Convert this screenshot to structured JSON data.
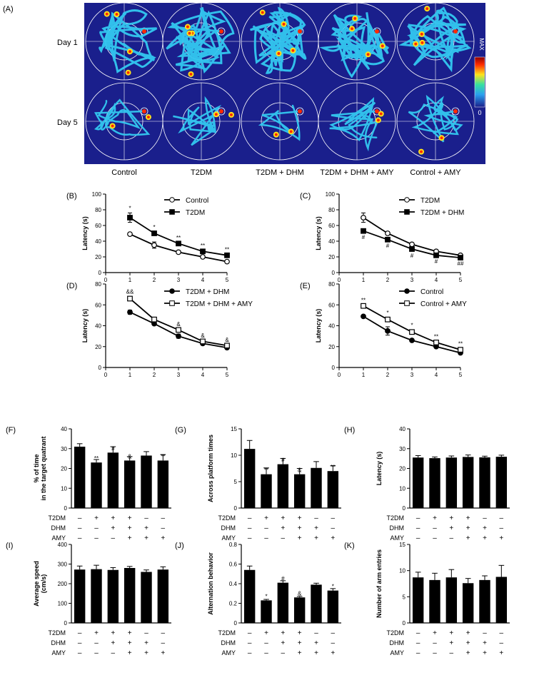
{
  "panel_A": {
    "label": "(A)",
    "row_labels": [
      "Day 1",
      "Day 5"
    ],
    "group_labels": [
      "Control",
      "T2DM",
      "T2DM + DHM",
      "T2DM + DHM + AMY",
      "Control + AMY"
    ],
    "colorbar_max": "MAX",
    "colorbar_min": "0",
    "colors": {
      "background": "#1a1f8c",
      "track": "#33c8f0",
      "hot": "#ff2a00",
      "warm": "#ffe21a"
    }
  },
  "chart_data": [
    {
      "id": "B",
      "label": "(B)",
      "type": "line",
      "ylabel": "Latency (s)",
      "ylim": [
        0,
        100
      ],
      "yticks": [
        0,
        20,
        40,
        60,
        80,
        100
      ],
      "x": [
        1,
        2,
        3,
        4,
        5
      ],
      "xticks": [
        0,
        1,
        2,
        3,
        4,
        5
      ],
      "legend_position": "top-right",
      "series": [
        {
          "name": "Control",
          "marker": "open-circle",
          "values": [
            49,
            35,
            26,
            20,
            14
          ],
          "err": [
            1,
            4,
            1,
            1,
            1
          ]
        },
        {
          "name": "T2DM",
          "marker": "filled-square",
          "values": [
            70,
            50,
            37,
            27,
            22
          ],
          "err": [
            6,
            2,
            1,
            1,
            1
          ]
        }
      ],
      "annotations": [
        "*",
        "*",
        "**",
        "**",
        "**"
      ]
    },
    {
      "id": "C",
      "label": "(C)",
      "type": "line",
      "ylabel": "Latency (s)",
      "ylim": [
        0,
        100
      ],
      "yticks": [
        0,
        20,
        40,
        60,
        80,
        100
      ],
      "x": [
        1,
        2,
        3,
        4,
        5
      ],
      "xticks": [
        0,
        1,
        2,
        3,
        4,
        5
      ],
      "legend_position": "top-right",
      "series": [
        {
          "name": "T2DM",
          "marker": "open-circle",
          "values": [
            70,
            50,
            36,
            27,
            22
          ],
          "err": [
            6,
            2,
            1,
            1,
            1
          ]
        },
        {
          "name": "T2DM + DHM",
          "marker": "filled-square",
          "values": [
            53,
            42,
            30,
            22,
            19
          ],
          "err": [
            1,
            1,
            2,
            1,
            1
          ]
        }
      ],
      "annotations": [
        "#",
        "#",
        "#",
        "#",
        "##"
      ]
    },
    {
      "id": "D",
      "label": "(D)",
      "type": "line",
      "ylabel": "Latency (s)",
      "ylim": [
        0,
        80
      ],
      "yticks": [
        0,
        20,
        40,
        60,
        80
      ],
      "x": [
        1,
        2,
        3,
        4,
        5
      ],
      "xticks": [
        0,
        1,
        2,
        3,
        4,
        5
      ],
      "legend_position": "top-right",
      "series": [
        {
          "name": "T2DM + DHM",
          "marker": "filled-circle",
          "values": [
            53,
            42,
            30,
            23,
            19
          ],
          "err": [
            2,
            1,
            2,
            1,
            1
          ]
        },
        {
          "name": "T2DM + DHM + AMY",
          "marker": "open-square",
          "values": [
            66,
            46,
            36,
            25,
            21
          ],
          "err": [
            2,
            2,
            1,
            1,
            1
          ]
        }
      ],
      "annotations": [
        "&&",
        "",
        "&",
        "&",
        "&"
      ]
    },
    {
      "id": "E",
      "label": "(E)",
      "type": "line",
      "ylabel": "Latency (s)",
      "ylim": [
        0,
        80
      ],
      "yticks": [
        0,
        20,
        40,
        60,
        80
      ],
      "x": [
        1,
        2,
        3,
        4,
        5
      ],
      "xticks": [
        0,
        1,
        2,
        3,
        4,
        5
      ],
      "legend_position": "top-right",
      "series": [
        {
          "name": "Control",
          "marker": "filled-circle",
          "values": [
            49,
            35,
            26,
            20,
            14
          ],
          "err": [
            1,
            4,
            1,
            1,
            1
          ]
        },
        {
          "name": "Control + AMY",
          "marker": "open-square",
          "values": [
            59,
            46,
            34,
            24,
            17
          ],
          "err": [
            1,
            2,
            2,
            1,
            1
          ]
        }
      ],
      "annotations": [
        "**",
        "*",
        "*",
        "**",
        "**"
      ]
    },
    {
      "id": "F",
      "label": "(F)",
      "type": "bar",
      "ylabel": [
        "% of time",
        "in the target quatrant"
      ],
      "ylim": [
        0,
        40
      ],
      "yticks": [
        0,
        10,
        20,
        30,
        40
      ],
      "values": [
        31,
        23,
        28,
        24,
        26.5,
        24
      ],
      "err": [
        1.5,
        1.5,
        3,
        2,
        2,
        3
      ],
      "annotations": [
        "",
        "**",
        "#",
        "&",
        "",
        "**"
      ]
    },
    {
      "id": "G",
      "label": "(G)",
      "type": "bar",
      "ylabel": [
        "Across platform times"
      ],
      "ylim": [
        0,
        15
      ],
      "yticks": [
        0,
        5,
        10,
        15
      ],
      "values": [
        11.2,
        6.4,
        8.3,
        6.4,
        7.6,
        7.0
      ],
      "err": [
        1.6,
        1.2,
        1.1,
        1.1,
        1.2,
        1.0
      ],
      "annotations": [
        "",
        "**",
        "#",
        "&",
        "",
        "**"
      ]
    },
    {
      "id": "H",
      "label": "(H)",
      "type": "bar",
      "ylabel": [
        "Latency (s)"
      ],
      "ylim": [
        0,
        40
      ],
      "yticks": [
        0,
        10,
        20,
        30,
        40
      ],
      "values": [
        25.5,
        25.2,
        25.5,
        25.8,
        25.6,
        25.9
      ],
      "err": [
        1,
        0.6,
        0.8,
        1,
        0.6,
        0.8
      ],
      "annotations": [
        "",
        "",
        "",
        "",
        "",
        ""
      ]
    },
    {
      "id": "I",
      "label": "(I)",
      "type": "bar",
      "ylabel": [
        "Average speed",
        "(cm/s)"
      ],
      "ylim": [
        0,
        400
      ],
      "yticks": [
        0,
        100,
        200,
        300,
        400
      ],
      "values": [
        272,
        274,
        270,
        280,
        260,
        272
      ],
      "err": [
        18,
        20,
        12,
        8,
        10,
        14
      ],
      "annotations": [
        "",
        "",
        "",
        "",
        "",
        ""
      ]
    },
    {
      "id": "J",
      "label": "(J)",
      "type": "bar",
      "ylabel": [
        "Alternation behavior"
      ],
      "ylim": [
        0,
        0.8
      ],
      "yticks": [
        0,
        0.2,
        0.4,
        0.6,
        0.8
      ],
      "values": [
        0.54,
        0.23,
        0.41,
        0.26,
        0.39,
        0.33
      ],
      "err": [
        0.04,
        0.01,
        0.02,
        0.01,
        0.015,
        0.02
      ],
      "annotations": [
        "",
        "*",
        "#",
        "&",
        "",
        "*"
      ]
    },
    {
      "id": "K",
      "label": "(K)",
      "type": "bar",
      "ylabel": [
        "Number of arm entries"
      ],
      "ylim": [
        0,
        15
      ],
      "yticks": [
        0,
        5,
        10,
        15
      ],
      "values": [
        8.7,
        8.2,
        8.7,
        7.6,
        8.2,
        8.8
      ],
      "err": [
        1,
        1.3,
        1.5,
        0.9,
        0.8,
        2.2
      ],
      "annotations": [
        "",
        "",
        "",
        "",
        "",
        ""
      ]
    }
  ],
  "bar_groups": {
    "row_names": [
      "T2DM",
      "DHM",
      "AMY"
    ],
    "signs": [
      [
        "–",
        "+",
        "+",
        "+",
        "–",
        "–"
      ],
      [
        "–",
        "–",
        "+",
        "+",
        "+",
        "–"
      ],
      [
        "–",
        "–",
        "–",
        "+",
        "+",
        "+"
      ]
    ]
  }
}
